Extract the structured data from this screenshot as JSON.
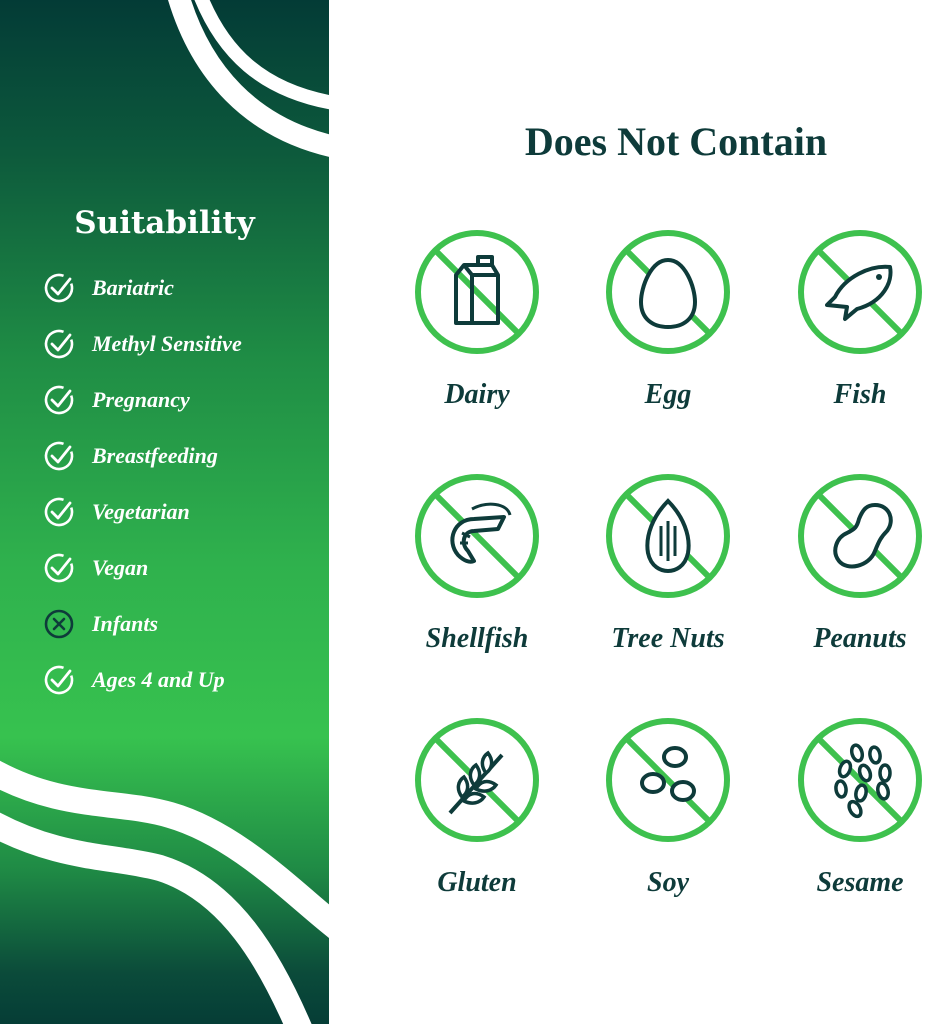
{
  "suitability": {
    "title": "Suitability",
    "items": [
      {
        "label": "Bariatric",
        "status": "check"
      },
      {
        "label": "Methyl Sensitive",
        "status": "check"
      },
      {
        "label": "Pregnancy",
        "status": "check"
      },
      {
        "label": "Breastfeeding",
        "status": "check"
      },
      {
        "label": "Vegetarian",
        "status": "check"
      },
      {
        "label": "Vegan",
        "status": "check"
      },
      {
        "label": "Infants",
        "status": "cross"
      },
      {
        "label": "Ages 4 and Up",
        "status": "check"
      }
    ]
  },
  "does_not_contain": {
    "title": "Does Not Contain",
    "items": [
      {
        "label": "Dairy",
        "icon": "milk-carton-icon"
      },
      {
        "label": "Egg",
        "icon": "egg-icon"
      },
      {
        "label": "Fish",
        "icon": "fish-icon"
      },
      {
        "label": "Shellfish",
        "icon": "shrimp-icon"
      },
      {
        "label": "Tree Nuts",
        "icon": "almond-icon"
      },
      {
        "label": "Peanuts",
        "icon": "peanut-icon"
      },
      {
        "label": "Gluten",
        "icon": "wheat-icon"
      },
      {
        "label": "Soy",
        "icon": "soybean-icon"
      },
      {
        "label": "Sesame",
        "icon": "sesame-icon"
      }
    ]
  },
  "colors": {
    "accent_green": "#3ec14e",
    "dark_teal": "#0e3b3a",
    "panel_dark": "#033b36",
    "panel_bright": "#37c24f"
  }
}
